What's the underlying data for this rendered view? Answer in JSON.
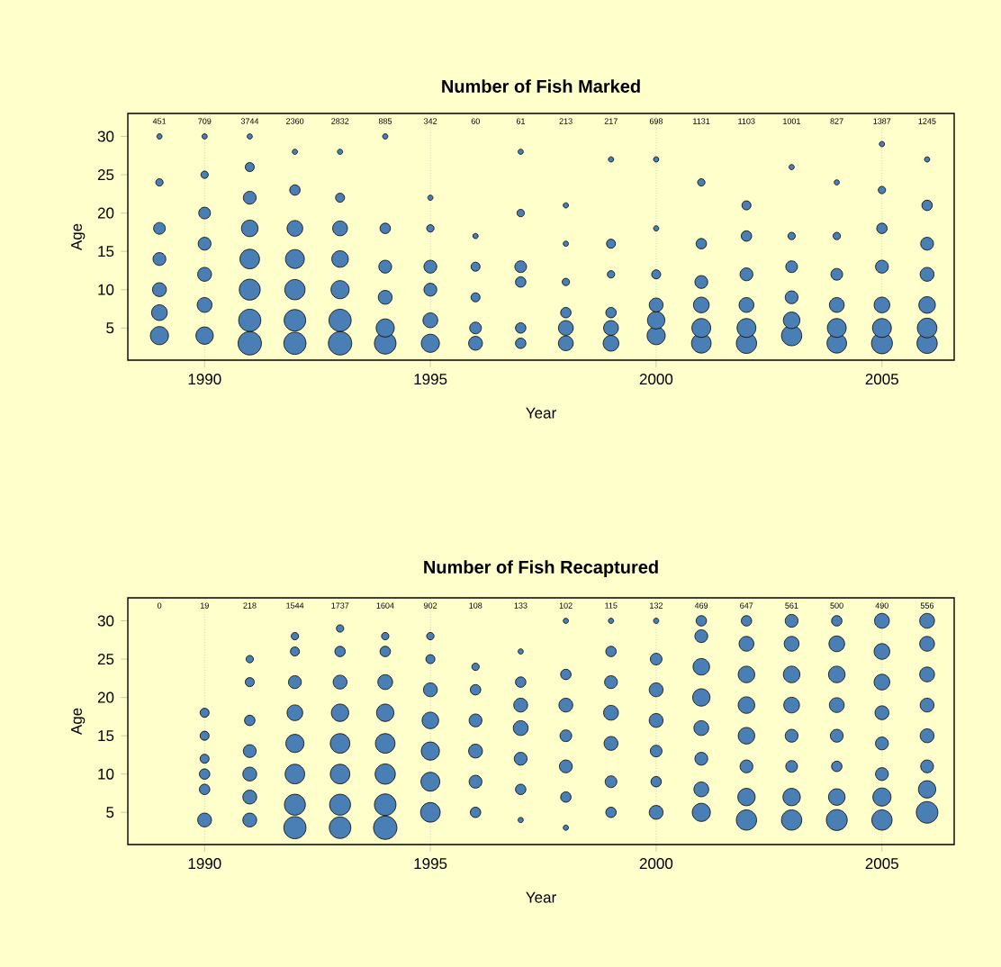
{
  "chart_data": [
    {
      "type": "bubble",
      "title": "Number of Fish Marked",
      "xlabel": "Year",
      "ylabel": "Age",
      "xlim": [
        1988.3,
        2006.6
      ],
      "ylim": [
        0.8,
        33
      ],
      "xticks": [
        1990,
        1995,
        2000,
        2005
      ],
      "yticks": [
        5,
        10,
        15,
        20,
        25,
        30
      ],
      "grid": "x",
      "series": [
        {
          "color": "#4a7fb5",
          "x": [
            1989,
            1989,
            1989,
            1989,
            1989,
            1989,
            1989,
            1990,
            1990,
            1990,
            1990,
            1990,
            1990,
            1990,
            1991,
            1991,
            1991,
            1991,
            1991,
            1991,
            1991,
            1991,
            1992,
            1992,
            1992,
            1992,
            1992,
            1992,
            1992,
            1993,
            1993,
            1993,
            1993,
            1993,
            1993,
            1993,
            1994,
            1994,
            1994,
            1994,
            1994,
            1994,
            1995,
            1995,
            1995,
            1995,
            1995,
            1995,
            1996,
            1996,
            1996,
            1996,
            1996,
            1997,
            1997,
            1997,
            1997,
            1997,
            1997,
            1998,
            1998,
            1998,
            1998,
            1998,
            1998,
            1999,
            1999,
            1999,
            1999,
            1999,
            1999,
            2000,
            2000,
            2000,
            2000,
            2000,
            2000,
            2001,
            2001,
            2001,
            2001,
            2001,
            2001,
            2002,
            2002,
            2002,
            2002,
            2002,
            2002,
            2003,
            2003,
            2003,
            2003,
            2003,
            2003,
            2004,
            2004,
            2004,
            2004,
            2004,
            2004,
            2005,
            2005,
            2005,
            2005,
            2005,
            2005,
            2005,
            2006,
            2006,
            2006,
            2006,
            2006,
            2006,
            2006
          ],
          "values": [
            4,
            7,
            10,
            14,
            18,
            24,
            30,
            4,
            8,
            12,
            16,
            20,
            25,
            30,
            3,
            6,
            10,
            14,
            18,
            22,
            26,
            30,
            3,
            6,
            10,
            14,
            18,
            23,
            28,
            3,
            6,
            10,
            14,
            18,
            22,
            28,
            3,
            5,
            9,
            13,
            18,
            30,
            3,
            6,
            10,
            13,
            18,
            22,
            3,
            5,
            9,
            13,
            17,
            3,
            5,
            11,
            13,
            20,
            28,
            3,
            5,
            7,
            11,
            16,
            21,
            3,
            5,
            7,
            12,
            16,
            27,
            4,
            6,
            8,
            12,
            18,
            27,
            3,
            5,
            8,
            11,
            16,
            24,
            3,
            5,
            8,
            12,
            17,
            21,
            4,
            6,
            9,
            13,
            17,
            26,
            3,
            5,
            8,
            12,
            17,
            24,
            3,
            5,
            8,
            13,
            18,
            23,
            29,
            3,
            5,
            8,
            12,
            16,
            21,
            27
          ],
          "sizes": [
            0.6,
            0.45,
            0.35,
            0.3,
            0.25,
            0.1,
            0.05,
            0.55,
            0.4,
            0.35,
            0.3,
            0.25,
            0.1,
            0.05,
            1.0,
            0.9,
            0.8,
            0.7,
            0.5,
            0.3,
            0.15,
            0.05,
            0.9,
            0.85,
            0.75,
            0.65,
            0.45,
            0.2,
            0.05,
            1.0,
            0.9,
            0.6,
            0.5,
            0.4,
            0.15,
            0.05,
            0.85,
            0.6,
            0.35,
            0.3,
            0.2,
            0.05,
            0.6,
            0.4,
            0.3,
            0.3,
            0.1,
            0.05,
            0.35,
            0.25,
            0.15,
            0.15,
            0.05,
            0.2,
            0.2,
            0.2,
            0.25,
            0.1,
            0.05,
            0.4,
            0.4,
            0.2,
            0.1,
            0.05,
            0.05,
            0.45,
            0.4,
            0.2,
            0.1,
            0.15,
            0.05,
            0.6,
            0.55,
            0.35,
            0.15,
            0.05,
            0.05,
            0.7,
            0.65,
            0.45,
            0.3,
            0.2,
            0.1,
            0.75,
            0.65,
            0.4,
            0.3,
            0.2,
            0.15,
            0.75,
            0.5,
            0.3,
            0.25,
            0.1,
            0.05,
            0.7,
            0.65,
            0.4,
            0.25,
            0.1,
            0.05,
            0.8,
            0.65,
            0.45,
            0.3,
            0.2,
            0.1,
            0.05,
            0.75,
            0.7,
            0.5,
            0.35,
            0.3,
            0.2,
            0.05
          ]
        }
      ],
      "annotations": [
        "451",
        "709",
        "3744",
        "2360",
        "2832",
        "885",
        "342",
        "60",
        "61",
        "213",
        "217",
        "698",
        "1131",
        "1103",
        "1001",
        "827",
        "1387",
        "1245"
      ]
    },
    {
      "type": "bubble",
      "title": "Number of Fish Recaptured",
      "xlabel": "Year",
      "ylabel": "Age",
      "xlim": [
        1988.3,
        2006.6
      ],
      "ylim": [
        0.8,
        33
      ],
      "xticks": [
        1990,
        1995,
        2000,
        2005
      ],
      "yticks": [
        5,
        10,
        15,
        20,
        25,
        30
      ],
      "grid": "x",
      "series": [
        {
          "color": "#4a7fb5",
          "x": [
            1990,
            1990,
            1990,
            1990,
            1990,
            1990,
            1991,
            1991,
            1991,
            1991,
            1991,
            1991,
            1991,
            1992,
            1992,
            1992,
            1992,
            1992,
            1992,
            1992,
            1992,
            1993,
            1993,
            1993,
            1993,
            1993,
            1993,
            1993,
            1993,
            1994,
            1994,
            1994,
            1994,
            1994,
            1994,
            1994,
            1994,
            1995,
            1995,
            1995,
            1995,
            1995,
            1995,
            1995,
            1996,
            1996,
            1996,
            1996,
            1996,
            1996,
            1997,
            1997,
            1997,
            1997,
            1997,
            1997,
            1997,
            1998,
            1998,
            1998,
            1998,
            1998,
            1998,
            1998,
            1999,
            1999,
            1999,
            1999,
            1999,
            1999,
            1999,
            2000,
            2000,
            2000,
            2000,
            2000,
            2000,
            2000,
            2001,
            2001,
            2001,
            2001,
            2001,
            2001,
            2001,
            2001,
            2002,
            2002,
            2002,
            2002,
            2002,
            2002,
            2002,
            2002,
            2003,
            2003,
            2003,
            2003,
            2003,
            2003,
            2003,
            2003,
            2004,
            2004,
            2004,
            2004,
            2004,
            2004,
            2004,
            2004,
            2005,
            2005,
            2005,
            2005,
            2005,
            2005,
            2005,
            2005,
            2006,
            2006,
            2006,
            2006,
            2006,
            2006,
            2006,
            2006
          ],
          "values": [
            4,
            8,
            10,
            12,
            15,
            18,
            4,
            7,
            10,
            13,
            17,
            22,
            25,
            3,
            6,
            10,
            14,
            18,
            22,
            26,
            28,
            3,
            6,
            10,
            14,
            18,
            22,
            26,
            29,
            3,
            6,
            10,
            14,
            18,
            22,
            26,
            28,
            5,
            9,
            13,
            17,
            21,
            25,
            28,
            5,
            9,
            13,
            17,
            21,
            24,
            4,
            8,
            12,
            16,
            19,
            22,
            26,
            3,
            7,
            11,
            15,
            19,
            23,
            30,
            5,
            9,
            14,
            18,
            22,
            26,
            30,
            5,
            9,
            13,
            17,
            21,
            25,
            30,
            5,
            8,
            12,
            16,
            20,
            24,
            28,
            30,
            4,
            7,
            11,
            15,
            19,
            23,
            27,
            30,
            4,
            7,
            11,
            15,
            19,
            23,
            27,
            30,
            4,
            7,
            11,
            15,
            19,
            23,
            27,
            30,
            4,
            7,
            10,
            14,
            18,
            22,
            26,
            30,
            5,
            8,
            11,
            15,
            19,
            23,
            27,
            30
          ],
          "sizes": [
            0.35,
            0.2,
            0.2,
            0.15,
            0.15,
            0.15,
            0.35,
            0.35,
            0.35,
            0.3,
            0.2,
            0.15,
            0.1,
            0.9,
            0.8,
            0.7,
            0.6,
            0.45,
            0.3,
            0.15,
            0.1,
            0.85,
            0.8,
            0.7,
            0.7,
            0.55,
            0.35,
            0.2,
            0.1,
            1.0,
            0.85,
            0.75,
            0.7,
            0.55,
            0.4,
            0.2,
            0.1,
            0.7,
            0.65,
            0.6,
            0.5,
            0.35,
            0.15,
            0.1,
            0.2,
            0.3,
            0.35,
            0.3,
            0.2,
            0.1,
            0.05,
            0.2,
            0.3,
            0.4,
            0.35,
            0.2,
            0.05,
            0.05,
            0.2,
            0.3,
            0.25,
            0.35,
            0.2,
            0.05,
            0.2,
            0.25,
            0.35,
            0.4,
            0.3,
            0.2,
            0.05,
            0.35,
            0.2,
            0.25,
            0.35,
            0.35,
            0.25,
            0.05,
            0.6,
            0.4,
            0.3,
            0.4,
            0.55,
            0.5,
            0.3,
            0.2,
            0.75,
            0.55,
            0.3,
            0.5,
            0.5,
            0.5,
            0.4,
            0.2,
            0.75,
            0.55,
            0.25,
            0.3,
            0.45,
            0.5,
            0.4,
            0.3,
            0.8,
            0.5,
            0.2,
            0.3,
            0.4,
            0.5,
            0.45,
            0.2,
            0.75,
            0.6,
            0.3,
            0.3,
            0.35,
            0.45,
            0.45,
            0.4,
            0.85,
            0.55,
            0.3,
            0.35,
            0.35,
            0.4,
            0.4,
            0.4
          ]
        }
      ],
      "annotations": [
        "0",
        "19",
        "218",
        "1544",
        "1737",
        "1604",
        "902",
        "108",
        "133",
        "102",
        "115",
        "132",
        "469",
        "647",
        "561",
        "500",
        "490",
        "556"
      ]
    }
  ]
}
